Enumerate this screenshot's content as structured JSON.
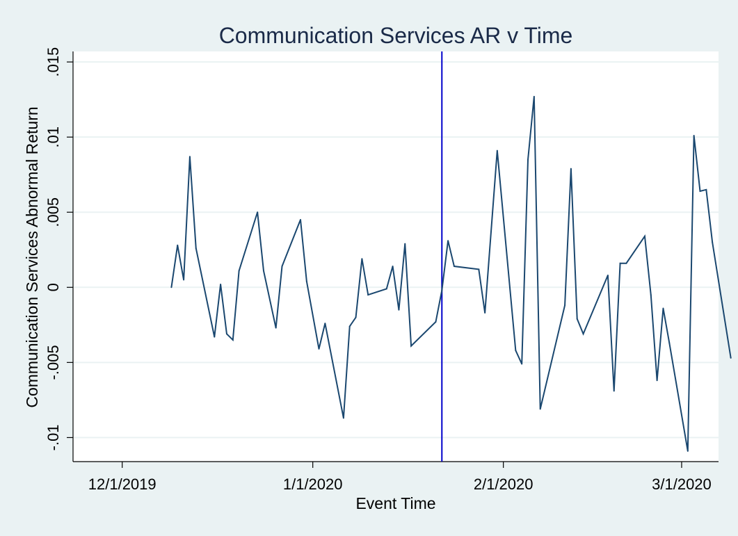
{
  "chart_data": {
    "type": "line",
    "title": "Communication Services AR v Time",
    "xlabel": "Event Time",
    "ylabel": "Communication Services Abnormal Return",
    "x_ticks": [
      {
        "date": "2019-12-01",
        "label": "12/1/2019"
      },
      {
        "date": "2020-01-01",
        "label": "1/1/2020"
      },
      {
        "date": "2020-02-01",
        "label": "2/1/2020"
      },
      {
        "date": "2020-03-01",
        "label": "3/1/2020"
      }
    ],
    "y_ticks": [
      {
        "value": -0.01,
        "label": "-.01"
      },
      {
        "value": -0.005,
        "label": "-.005"
      },
      {
        "value": 0,
        "label": "0"
      },
      {
        "value": 0.005,
        "label": ".005"
      },
      {
        "value": 0.01,
        "label": ".01"
      },
      {
        "value": 0.015,
        "label": ".015"
      }
    ],
    "xlim": [
      "2019-11-23",
      "2020-03-07"
    ],
    "ylim": [
      -0.0116,
      0.0157
    ],
    "grid": true,
    "event_line": {
      "date": "2020-01-22",
      "color": "#0000cc"
    },
    "series": [
      {
        "color": "#1a476f",
        "points": [
          [
            "2019-12-09",
            0.0
          ],
          [
            "2019-12-10",
            0.0028
          ],
          [
            "2019-12-11",
            0.0005
          ],
          [
            "2019-12-12",
            0.0087
          ],
          [
            "2019-12-13",
            0.0026
          ],
          [
            "2019-12-16",
            -0.0033
          ],
          [
            "2019-12-17",
            0.0002
          ],
          [
            "2019-12-18",
            -0.0031
          ],
          [
            "2019-12-19",
            -0.0035
          ],
          [
            "2019-12-20",
            0.0011
          ],
          [
            "2019-12-23",
            0.005
          ],
          [
            "2019-12-24",
            0.0011
          ],
          [
            "2019-12-26",
            -0.0027
          ],
          [
            "2019-12-27",
            0.0014
          ],
          [
            "2019-12-30",
            0.0045
          ],
          [
            "2019-12-31",
            0.0004
          ],
          [
            "2020-01-02",
            -0.0041
          ],
          [
            "2020-01-03",
            -0.0024
          ],
          [
            "2020-01-06",
            -0.0087
          ],
          [
            "2020-01-07",
            -0.0026
          ],
          [
            "2020-01-08",
            -0.002
          ],
          [
            "2020-01-09",
            0.0019
          ],
          [
            "2020-01-10",
            -0.0005
          ],
          [
            "2020-01-13",
            -0.0001
          ],
          [
            "2020-01-14",
            0.0014
          ],
          [
            "2020-01-15",
            -0.0015
          ],
          [
            "2020-01-16",
            0.0029
          ],
          [
            "2020-01-17",
            -0.0039
          ],
          [
            "2020-01-21",
            -0.0023
          ],
          [
            "2020-01-22",
            -0.0002
          ],
          [
            "2020-01-23",
            0.0031
          ],
          [
            "2020-01-24",
            0.0014
          ],
          [
            "2020-01-28",
            0.0012
          ],
          [
            "2020-01-29",
            -0.0017
          ],
          [
            "2020-01-31",
            0.0091
          ],
          [
            "2020-02-03",
            -0.0042
          ],
          [
            "2020-02-04",
            -0.0051
          ],
          [
            "2020-02-05",
            0.0085
          ],
          [
            "2020-02-06",
            0.0127
          ],
          [
            "2020-02-07",
            -0.0081
          ],
          [
            "2020-02-11",
            -0.0012
          ],
          [
            "2020-02-12",
            0.0079
          ],
          [
            "2020-02-13",
            -0.0021
          ],
          [
            "2020-02-14",
            -0.0031
          ],
          [
            "2020-02-18",
            0.0008
          ],
          [
            "2020-02-19",
            -0.0069
          ],
          [
            "2020-02-20",
            0.0016
          ],
          [
            "2020-02-21",
            0.0016
          ],
          [
            "2020-02-24",
            0.0034
          ],
          [
            "2020-02-25",
            -0.0005
          ],
          [
            "2020-02-26",
            -0.0062
          ],
          [
            "2020-02-27",
            -0.0014
          ],
          [
            "2020-02-28",
            -0.0037
          ],
          [
            "2020-03-02",
            -0.0109
          ],
          [
            "2020-03-03",
            0.0101
          ],
          [
            "2020-03-04",
            0.0064
          ],
          [
            "2020-03-05",
            0.0065
          ],
          [
            "2020-03-06",
            0.003
          ],
          [
            "2020-03-09",
            -0.0047
          ]
        ]
      }
    ]
  }
}
